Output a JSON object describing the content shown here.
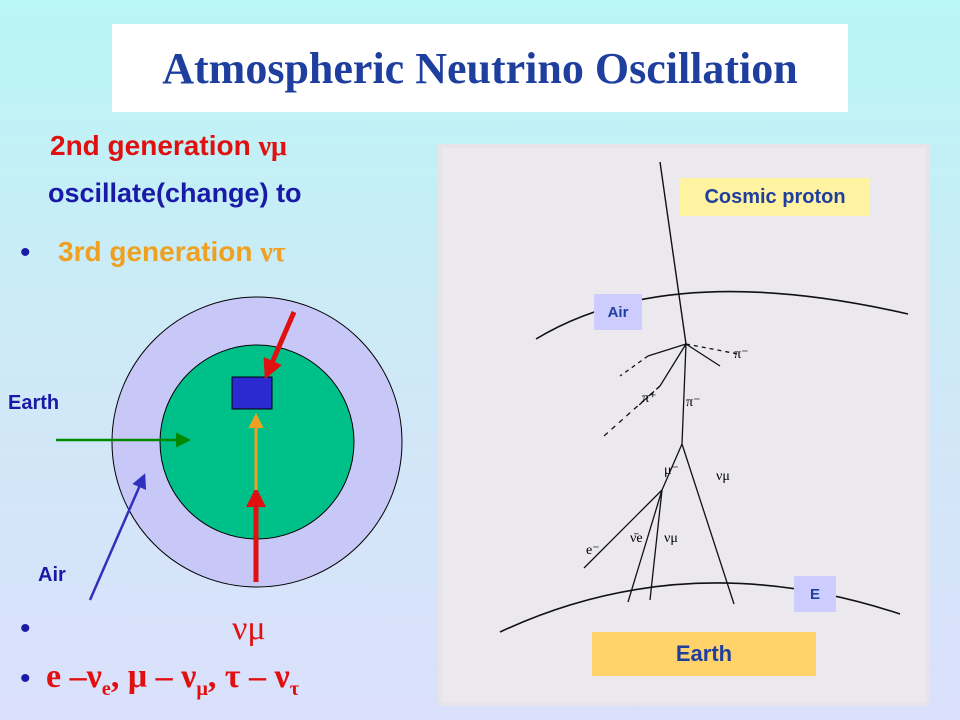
{
  "title": "Atmospheric Neutrino Oscillation",
  "left_text": {
    "line1": "2nd generation ",
    "line1_symbol": "νμ",
    "line2": "oscillate(change)  to",
    "bullet1": "3rd generation ",
    "bullet1_symbol": "ντ",
    "bullet2_symbol": "νμ",
    "bullet3": {
      "e": "e –ν",
      "e_sub": "e",
      "mu": ",  μ – ν",
      "mu_sub": "μ",
      "tau": ",  τ – ν",
      "tau_sub": "τ"
    }
  },
  "earth_diagram": {
    "earth_label": "Earth",
    "air_label": "Air"
  },
  "shower_diagram": {
    "cosmic_proton_label": "Cosmic proton",
    "air_label": "Air",
    "e_label": "E",
    "earth_label": "Earth",
    "particles": {
      "pi_plus": "π⁺",
      "pi_minus_a": "π⁻",
      "pi_minus_b": "π⁻",
      "mu_minus": "μ⁻",
      "nu_mu_a": "νμ",
      "nu_mu_b": "νμ",
      "nu_e_bar": "ν̄e",
      "e_minus": "e⁻"
    }
  },
  "colors": {
    "title": "#1f3f9f",
    "red_text": "#e01010",
    "blue_text": "#1a1aa6",
    "orange_text": "#f0a020",
    "earth_outer": "#c8c8f8",
    "earth_inner": "#00c08a",
    "label_yellow": "#fff2a0",
    "label_lavender": "#ccccff",
    "label_orange": "#ffd26a"
  }
}
